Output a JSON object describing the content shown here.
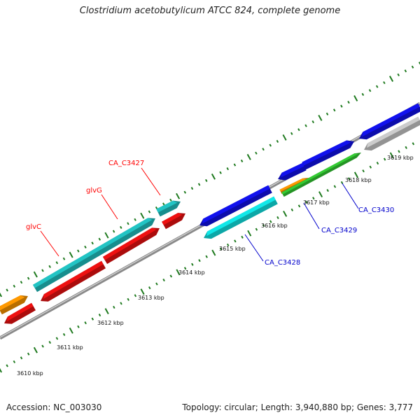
{
  "title": "Clostridium acetobutylicum ATCC 824, complete genome",
  "footer": {
    "accession": "Accession: NC_003030",
    "stats": "Topology: circular; Length: 3,940,880 bp; Genes: 3,777"
  },
  "scale": {
    "unit": "kbp",
    "labels": [
      "3610 kbp",
      "3611 kbp",
      "3612 kbp",
      "3613 kbp",
      "3614 kbp",
      "3615 kbp",
      "3616 kbp",
      "3617 kbp",
      "3618 kbp",
      "3619 kbp"
    ]
  },
  "gene_labels": [
    {
      "text": "glvC",
      "color": "#ff0000"
    },
    {
      "text": "glvG",
      "color": "#ff0000"
    },
    {
      "text": "CA_C3427",
      "color": "#ff0000"
    },
    {
      "text": "CA_C3428",
      "color": "#0000cc"
    },
    {
      "text": "CA_C3429",
      "color": "#0000cc"
    },
    {
      "text": "CA_C3430",
      "color": "#0000cc"
    }
  ],
  "colors": {
    "backbone": "#777777",
    "tick": "#1f7a1f",
    "red": "#ee1111",
    "teal": "#22c4c4",
    "cyan": "#11e8e8",
    "blue": "#1111ee",
    "orange": "#ff9900",
    "green": "#33cc33",
    "grey": "#cccccc"
  }
}
